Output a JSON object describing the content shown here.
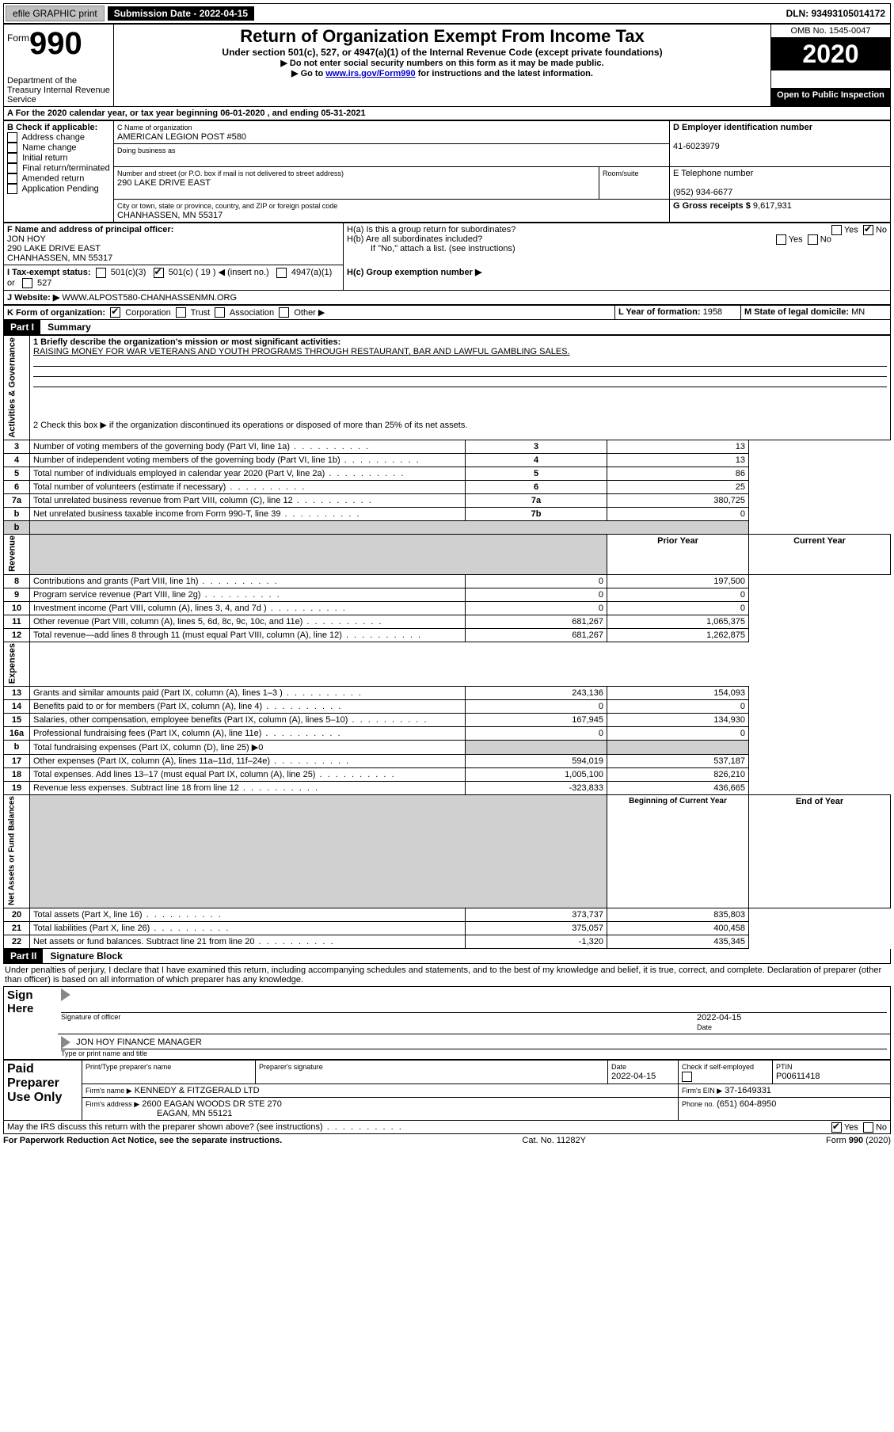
{
  "topbar": {
    "efile": "efile GRAPHIC print",
    "submission": "Submission Date - 2022-04-15",
    "dln": "DLN: 93493105014172"
  },
  "header": {
    "form_label": "Form",
    "form_number": "990",
    "dept": "Department of the Treasury\nInternal Revenue Service",
    "title": "Return of Organization Exempt From Income Tax",
    "subtitle": "Under section 501(c), 527, or 4947(a)(1) of the Internal Revenue Code (except private foundations)",
    "instr1": "▶ Do not enter social security numbers on this form as it may be made public.",
    "instr2_pre": "▶ Go to ",
    "instr2_link": "www.irs.gov/Form990",
    "instr2_post": " for instructions and the latest information.",
    "omb": "OMB No. 1545-0047",
    "year": "2020",
    "open": "Open to Public Inspection"
  },
  "A": {
    "line": "A For the 2020 calendar year, or tax year beginning 06-01-2020    , and ending 05-31-2021"
  },
  "B": {
    "label": "B Check if applicable:",
    "items": [
      "Address change",
      "Name change",
      "Initial return",
      "Final return/terminated",
      "Amended return",
      "Application Pending"
    ]
  },
  "C": {
    "name_lbl": "C Name of organization",
    "name": "AMERICAN LEGION POST #580",
    "dba_lbl": "Doing business as",
    "addr_lbl": "Number and street (or P.O. box if mail is not delivered to street address)",
    "room_lbl": "Room/suite",
    "addr": "290 LAKE DRIVE EAST",
    "city_lbl": "City or town, state or province, country, and ZIP or foreign postal code",
    "city": "CHANHASSEN, MN  55317"
  },
  "D": {
    "lbl": "D Employer identification number",
    "val": "41-6023979"
  },
  "E": {
    "lbl": "E Telephone number",
    "val": "(952) 934-6677"
  },
  "G": {
    "lbl": "G Gross receipts $",
    "val": "9,617,931"
  },
  "F": {
    "lbl": "F  Name and address of principal officer:",
    "name": "JON HOY",
    "addr1": "290 LAKE DRIVE EAST",
    "addr2": "CHANHASSEN, MN  55317"
  },
  "H": {
    "a": "H(a)  Is this a group return for subordinates?",
    "b": "H(b)  Are all subordinates included?",
    "b_note": "If \"No,\" attach a list. (see instructions)",
    "c": "H(c)  Group exemption number ▶",
    "yes": "Yes",
    "no": "No"
  },
  "I": {
    "lbl": "I    Tax-exempt status:",
    "opt1": "501(c)(3)",
    "opt2": "501(c) ( 19 ) ◀ (insert no.)",
    "opt3": "4947(a)(1) or",
    "opt4": "527"
  },
  "J": {
    "lbl": "J   Website: ▶",
    "val": "  WWW.ALPOST580-CHANHASSENMN.ORG"
  },
  "K": {
    "lbl": "K Form of organization:",
    "opts": [
      "Corporation",
      "Trust",
      "Association",
      "Other ▶"
    ]
  },
  "L": {
    "lbl": "L Year of formation:",
    "val": "1958"
  },
  "M": {
    "lbl": "M State of legal domicile:",
    "val": "MN"
  },
  "part1": {
    "hdr": "Part I",
    "title": "Summary"
  },
  "summary": {
    "l1_lbl": "1  Briefly describe the organization's mission or most significant activities:",
    "l1_val": "RAISING MONEY FOR WAR VETERANS AND YOUTH PROGRAMS THROUGH RESTAURANT, BAR AND LAWFUL GAMBLING SALES.",
    "l2": "2   Check this box ▶        if the organization discontinued its operations or disposed of more than 25% of its net assets.",
    "rows_ag": [
      {
        "n": "3",
        "t": "Number of voting members of the governing body (Part VI, line 1a)",
        "box": "3",
        "v": "13"
      },
      {
        "n": "4",
        "t": "Number of independent voting members of the governing body (Part VI, line 1b)",
        "box": "4",
        "v": "13"
      },
      {
        "n": "5",
        "t": "Total number of individuals employed in calendar year 2020 (Part V, line 2a)",
        "box": "5",
        "v": "86"
      },
      {
        "n": "6",
        "t": "Total number of volunteers (estimate if necessary)",
        "box": "6",
        "v": "25"
      },
      {
        "n": "7a",
        "t": "Total unrelated business revenue from Part VIII, column (C), line 12",
        "box": "7a",
        "v": "380,725"
      },
      {
        "n": "b",
        "t": "Net unrelated business taxable income from Form 990-T, line 39",
        "box": "7b",
        "v": "0"
      }
    ],
    "col_prior": "Prior Year",
    "col_curr": "Current Year",
    "rev": [
      {
        "n": "8",
        "t": "Contributions and grants (Part VIII, line 1h)",
        "p": "0",
        "c": "197,500"
      },
      {
        "n": "9",
        "t": "Program service revenue (Part VIII, line 2g)",
        "p": "0",
        "c": "0"
      },
      {
        "n": "10",
        "t": "Investment income (Part VIII, column (A), lines 3, 4, and 7d )",
        "p": "0",
        "c": "0"
      },
      {
        "n": "11",
        "t": "Other revenue (Part VIII, column (A), lines 5, 6d, 8c, 9c, 10c, and 11e)",
        "p": "681,267",
        "c": "1,065,375"
      },
      {
        "n": "12",
        "t": "Total revenue—add lines 8 through 11 (must equal Part VIII, column (A), line 12)",
        "p": "681,267",
        "c": "1,262,875"
      }
    ],
    "exp": [
      {
        "n": "13",
        "t": "Grants and similar amounts paid (Part IX, column (A), lines 1–3 )",
        "p": "243,136",
        "c": "154,093"
      },
      {
        "n": "14",
        "t": "Benefits paid to or for members (Part IX, column (A), line 4)",
        "p": "0",
        "c": "0"
      },
      {
        "n": "15",
        "t": "Salaries, other compensation, employee benefits (Part IX, column (A), lines 5–10)",
        "p": "167,945",
        "c": "134,930"
      },
      {
        "n": "16a",
        "t": "Professional fundraising fees (Part IX, column (A), line 11e)",
        "p": "0",
        "c": "0"
      },
      {
        "n": "b",
        "t": "Total fundraising expenses (Part IX, column (D), line 25) ▶0",
        "p": "",
        "c": "",
        "shade": true
      },
      {
        "n": "17",
        "t": "Other expenses (Part IX, column (A), lines 11a–11d, 11f–24e)",
        "p": "594,019",
        "c": "537,187"
      },
      {
        "n": "18",
        "t": "Total expenses. Add lines 13–17 (must equal Part IX, column (A), line 25)",
        "p": "1,005,100",
        "c": "826,210"
      },
      {
        "n": "19",
        "t": "Revenue less expenses. Subtract line 18 from line 12",
        "p": "-323,833",
        "c": "436,665"
      }
    ],
    "col_beg": "Beginning of Current Year",
    "col_end": "End of Year",
    "net": [
      {
        "n": "20",
        "t": "Total assets (Part X, line 16)",
        "p": "373,737",
        "c": "835,803"
      },
      {
        "n": "21",
        "t": "Total liabilities (Part X, line 26)",
        "p": "375,057",
        "c": "400,458"
      },
      {
        "n": "22",
        "t": "Net assets or fund balances. Subtract line 21 from line 20",
        "p": "-1,320",
        "c": "435,345"
      }
    ]
  },
  "vlabels": {
    "ag": "Activities & Governance",
    "rev": "Revenue",
    "exp": "Expenses",
    "net": "Net Assets or Fund Balances"
  },
  "part2": {
    "hdr": "Part II",
    "title": "Signature Block"
  },
  "sig": {
    "penalty": "Under penalties of perjury, I declare that I have examined this return, including accompanying schedules and statements, and to the best of my knowledge and belief, it is true, correct, and complete. Declaration of preparer (other than officer) is based on all information of which preparer has any knowledge.",
    "sign_here": "Sign Here",
    "sig_officer": "Signature of officer",
    "date_lbl": "Date",
    "date": "2022-04-15",
    "name": "JON HOY FINANCE MANAGER",
    "name_lbl": "Type or print name and title",
    "paid": "Paid Preparer Use Only",
    "prep_name_lbl": "Print/Type preparer's name",
    "prep_sig_lbl": "Preparer's signature",
    "prep_date_lbl": "Date",
    "prep_date": "2022-04-15",
    "check_lbl": "Check         if self-employed",
    "ptin_lbl": "PTIN",
    "ptin": "P00611418",
    "firm_name_lbl": "Firm's name    ▶",
    "firm_name": "KENNEDY & FITZGERALD LTD",
    "firm_ein_lbl": "Firm's EIN ▶",
    "firm_ein": "37-1649331",
    "firm_addr_lbl": "Firm's address ▶",
    "firm_addr1": "2600 EAGAN WOODS DR STE 270",
    "firm_addr2": "EAGAN, MN  55121",
    "phone_lbl": "Phone no.",
    "phone": "(651) 604-8950",
    "discuss": "May the IRS discuss this return with the preparer shown above? (see instructions)"
  },
  "footer": {
    "left": "For Paperwork Reduction Act Notice, see the separate instructions.",
    "mid": "Cat. No. 11282Y",
    "right": "Form 990 (2020)"
  }
}
